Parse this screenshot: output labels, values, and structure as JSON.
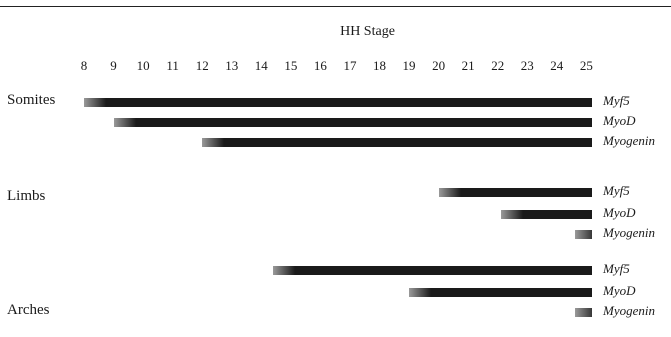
{
  "chart_data": {
    "type": "gantt",
    "title": "",
    "xlabel": "HH Stage",
    "ticks": [
      8,
      9,
      10,
      11,
      12,
      13,
      14,
      15,
      16,
      17,
      18,
      19,
      20,
      21,
      22,
      23,
      24,
      25
    ],
    "groups": [
      {
        "label": "Somites",
        "rows": [
          {
            "gene": "Myf5",
            "start": 8.0,
            "end": 25
          },
          {
            "gene": "MyoD",
            "start": 9.0,
            "end": 25
          },
          {
            "gene": "Myogenin",
            "start": 12.0,
            "end": 25
          }
        ]
      },
      {
        "label": "Limbs",
        "rows": [
          {
            "gene": "Myf5",
            "start": 20.0,
            "end": 25
          },
          {
            "gene": "MyoD",
            "start": 22.1,
            "end": 25
          },
          {
            "gene": "Myogenin",
            "start": 24.6,
            "end": 25
          }
        ]
      },
      {
        "label": "Arches",
        "rows": [
          {
            "gene": "Myf5",
            "start": 14.4,
            "end": 25
          },
          {
            "gene": "MyoD",
            "start": 19.0,
            "end": 25
          },
          {
            "gene": "Myogenin",
            "start": 24.6,
            "end": 25
          }
        ]
      }
    ],
    "bar_color": "#1a1a1a",
    "fade_color": "#9a9a9a"
  }
}
